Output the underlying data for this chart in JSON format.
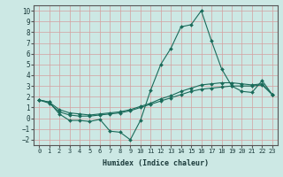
{
  "title": "",
  "xlabel": "Humidex (Indice chaleur)",
  "ylabel": "",
  "xlim": [
    -0.5,
    23.5
  ],
  "ylim": [
    -2.5,
    10.5
  ],
  "xticks": [
    0,
    1,
    2,
    3,
    4,
    5,
    6,
    7,
    8,
    9,
    10,
    11,
    12,
    13,
    14,
    15,
    16,
    17,
    18,
    19,
    20,
    21,
    22,
    23
  ],
  "yticks": [
    -2,
    -1,
    0,
    1,
    2,
    3,
    4,
    5,
    6,
    7,
    8,
    9,
    10
  ],
  "background_color": "#cce8e4",
  "grid_color": "#d4a0a0",
  "line_color": "#1a6b5a",
  "lines": [
    {
      "x": [
        0,
        1,
        2,
        3,
        4,
        5,
        6,
        7,
        8,
        9,
        10,
        11,
        12,
        13,
        14,
        15,
        16,
        17,
        18,
        19,
        20,
        21,
        22,
        23
      ],
      "y": [
        1.7,
        1.5,
        0.4,
        -0.2,
        -0.2,
        -0.3,
        -0.1,
        -1.2,
        -1.3,
        -2.0,
        -0.2,
        2.6,
        5.0,
        6.5,
        8.5,
        8.7,
        10.0,
        7.2,
        4.6,
        3.0,
        2.5,
        2.4,
        3.5,
        2.2
      ]
    },
    {
      "x": [
        0,
        1,
        2,
        3,
        4,
        5,
        6,
        7,
        8,
        9,
        10,
        11,
        12,
        13,
        14,
        15,
        16,
        17,
        18,
        19,
        20,
        21,
        22,
        23
      ],
      "y": [
        1.7,
        1.4,
        0.6,
        0.3,
        0.2,
        0.2,
        0.3,
        0.4,
        0.5,
        0.7,
        1.0,
        1.3,
        1.6,
        1.9,
        2.2,
        2.5,
        2.7,
        2.8,
        2.9,
        3.0,
        3.0,
        3.0,
        3.1,
        2.2
      ]
    },
    {
      "x": [
        0,
        1,
        2,
        3,
        4,
        5,
        6,
        7,
        8,
        9,
        10,
        11,
        12,
        13,
        14,
        15,
        16,
        17,
        18,
        19,
        20,
        21,
        22,
        23
      ],
      "y": [
        1.7,
        1.5,
        0.8,
        0.5,
        0.4,
        0.3,
        0.4,
        0.5,
        0.6,
        0.8,
        1.1,
        1.4,
        1.8,
        2.1,
        2.5,
        2.8,
        3.1,
        3.2,
        3.3,
        3.3,
        3.2,
        3.1,
        3.2,
        2.2
      ]
    }
  ]
}
